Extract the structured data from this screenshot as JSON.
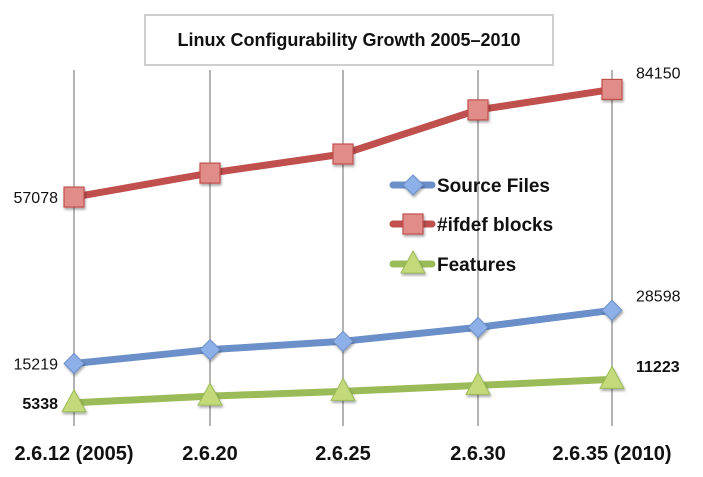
{
  "chart_data": {
    "type": "line",
    "title": "Linux Configurability Growth 2005–2010",
    "xlabel": "",
    "ylabel": "",
    "categories": [
      "2.6.12 (2005)",
      "2.6.20",
      "2.6.25",
      "2.6.30",
      "2.6.35 (2010)"
    ],
    "ylim": [
      0,
      90000
    ],
    "grid": "vertical",
    "legend": "center-right",
    "series": [
      {
        "name": "Source Files",
        "color": "#6b8fc9",
        "marker": "diamond",
        "values": [
          15219,
          18700,
          20800,
          24300,
          28598
        ],
        "labels": {
          "first": "15219",
          "last": "28598"
        },
        "labels_bold": false
      },
      {
        "name": "#ifdef blocks",
        "color": "#c0504d",
        "marker": "square",
        "values": [
          57078,
          63100,
          67900,
          79000,
          84150
        ],
        "labels": {
          "first": "57078",
          "last": "84150"
        },
        "labels_bold": false
      },
      {
        "name": "Features",
        "color": "#9bbb59",
        "marker": "triangle",
        "values": [
          5338,
          7000,
          8200,
          9700,
          11223
        ],
        "labels": {
          "first": "5338",
          "last": "11223"
        },
        "labels_bold": true
      }
    ]
  }
}
